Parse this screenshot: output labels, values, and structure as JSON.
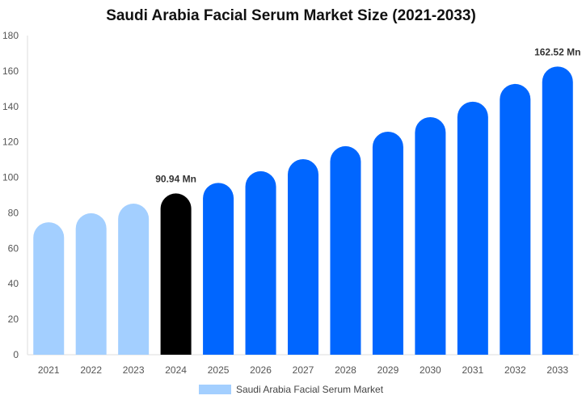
{
  "chart_data": {
    "type": "bar",
    "title": "Saudi Arabia Facial Serum Market Size (2021-2033)",
    "categories": [
      "2021",
      "2022",
      "2023",
      "2024",
      "2025",
      "2026",
      "2027",
      "2028",
      "2029",
      "2030",
      "2031",
      "2032",
      "2033"
    ],
    "series": [
      {
        "name": "Saudi Arabia Facial Serum Market",
        "values": [
          74.7,
          79.8,
          85.2,
          90.94,
          96.9,
          103.5,
          110.3,
          117.6,
          125.8,
          134.0,
          142.7,
          152.7,
          162.52
        ]
      }
    ],
    "bar_colors": [
      "#a3cfff",
      "#a3cfff",
      "#a3cfff",
      "#000000",
      "#0066ff",
      "#0066ff",
      "#0066ff",
      "#0066ff",
      "#0066ff",
      "#0066ff",
      "#0066ff",
      "#0066ff",
      "#0066ff"
    ],
    "data_labels": {
      "2024": "90.94 Mn",
      "2033": "162.52 Mn"
    },
    "yticks": [
      0,
      20,
      40,
      60,
      80,
      100,
      120,
      140,
      160,
      180
    ],
    "ylim": [
      0,
      180
    ],
    "xlabel": "",
    "ylabel": "",
    "grid": false,
    "legend_position": "bottom"
  }
}
